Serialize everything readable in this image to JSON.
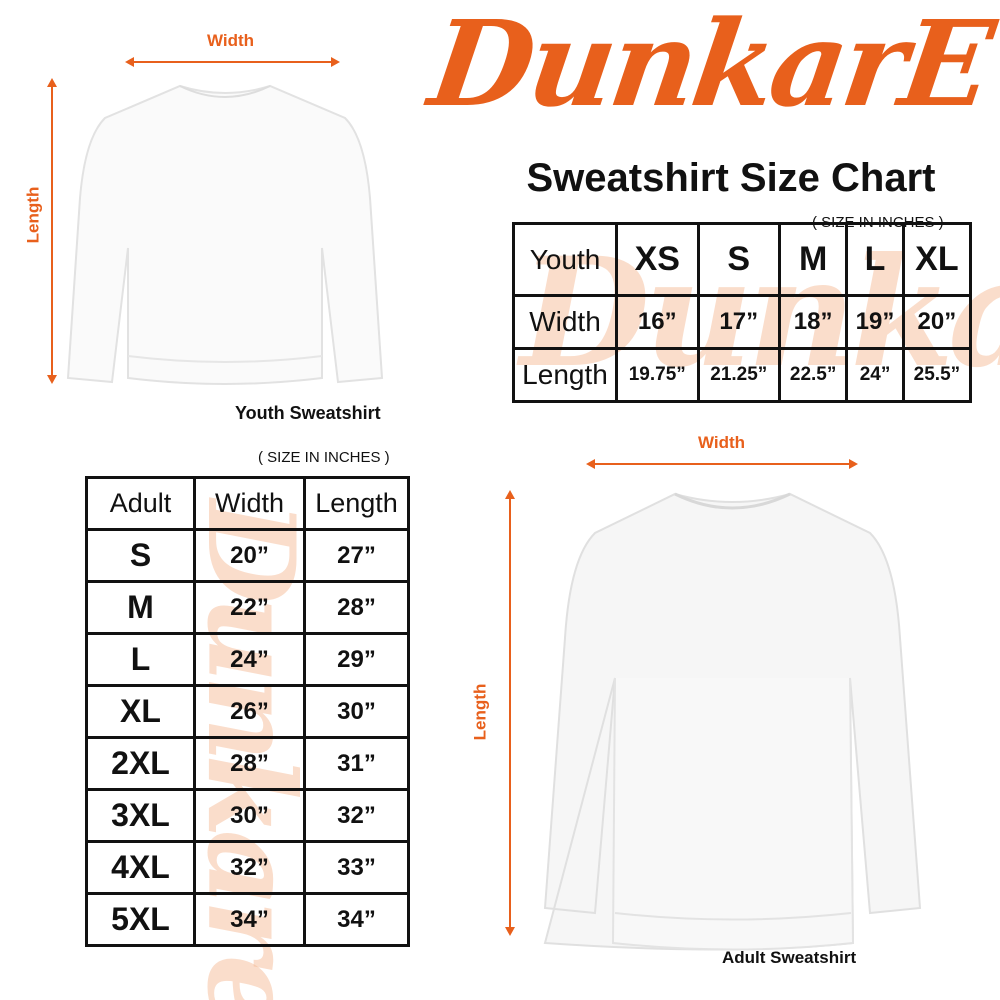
{
  "brand": {
    "logo_text": "DunkarE",
    "title": "Sweatshirt Size Chart",
    "color": "#e8601c"
  },
  "youth": {
    "width_label": "Width",
    "length_label": "Length",
    "caption": "Youth Sweatshirt",
    "units_note": "( SIZE IN INCHES )",
    "table": {
      "header": [
        "Youth",
        "XS",
        "S",
        "M",
        "L",
        "XL"
      ],
      "rows": [
        [
          "Width",
          "16”",
          "17”",
          "18”",
          "19”",
          "20”"
        ],
        [
          "Length",
          "19.75”",
          "21.25”",
          "22.5”",
          "24”",
          "25.5”"
        ]
      ]
    }
  },
  "adult": {
    "width_label": "Width",
    "length_label": "Length",
    "caption": "Adult Sweatshirt",
    "units_note": "( SIZE IN INCHES )",
    "table": {
      "header": [
        "Adult",
        "Width",
        "Length"
      ],
      "rows": [
        [
          "S",
          "20”",
          "27”"
        ],
        [
          "M",
          "22”",
          "28”"
        ],
        [
          "L",
          "24”",
          "29”"
        ],
        [
          "XL",
          "26”",
          "30”"
        ],
        [
          "2XL",
          "28”",
          "31”"
        ],
        [
          "3XL",
          "30”",
          "32”"
        ],
        [
          "4XL",
          "32”",
          "33”"
        ],
        [
          "5XL",
          "34”",
          "34”"
        ]
      ]
    }
  }
}
